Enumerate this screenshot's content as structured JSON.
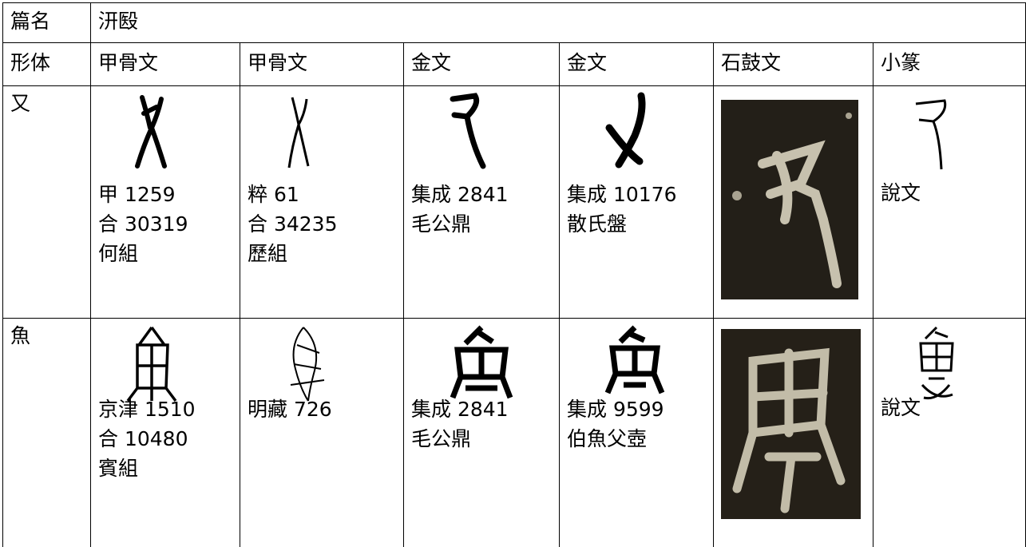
{
  "table": {
    "rows": [
      {
        "head": "篇名",
        "title": "汧殹"
      },
      {
        "head": "形体",
        "scripts": [
          "甲骨文",
          "甲骨文",
          "金文",
          "金文",
          "石鼓文",
          "小篆"
        ]
      },
      {
        "head": "又",
        "jiagu_a": [
          "甲 1259",
          "合 30319",
          "何組"
        ],
        "jiagu_b": [
          "粹 61",
          "合 34235",
          "歷組"
        ],
        "jinwen_a": [
          "集成 2841",
          "毛公鼎"
        ],
        "jinwen_b": [
          "集成 10176",
          "散氏盤"
        ],
        "xiaozhuan": [
          "說文"
        ]
      },
      {
        "head": "魚",
        "jiagu_a": [
          "京津 1510",
          "合 10480",
          "賓組"
        ],
        "jiagu_b": [
          "明藏 726"
        ],
        "jinwen_a": [
          "集成 2841",
          "毛公鼎"
        ],
        "jinwen_b": [
          "集成 9599",
          "伯魚父壺"
        ],
        "xiaozhuan": [
          "說文"
        ]
      }
    ]
  }
}
